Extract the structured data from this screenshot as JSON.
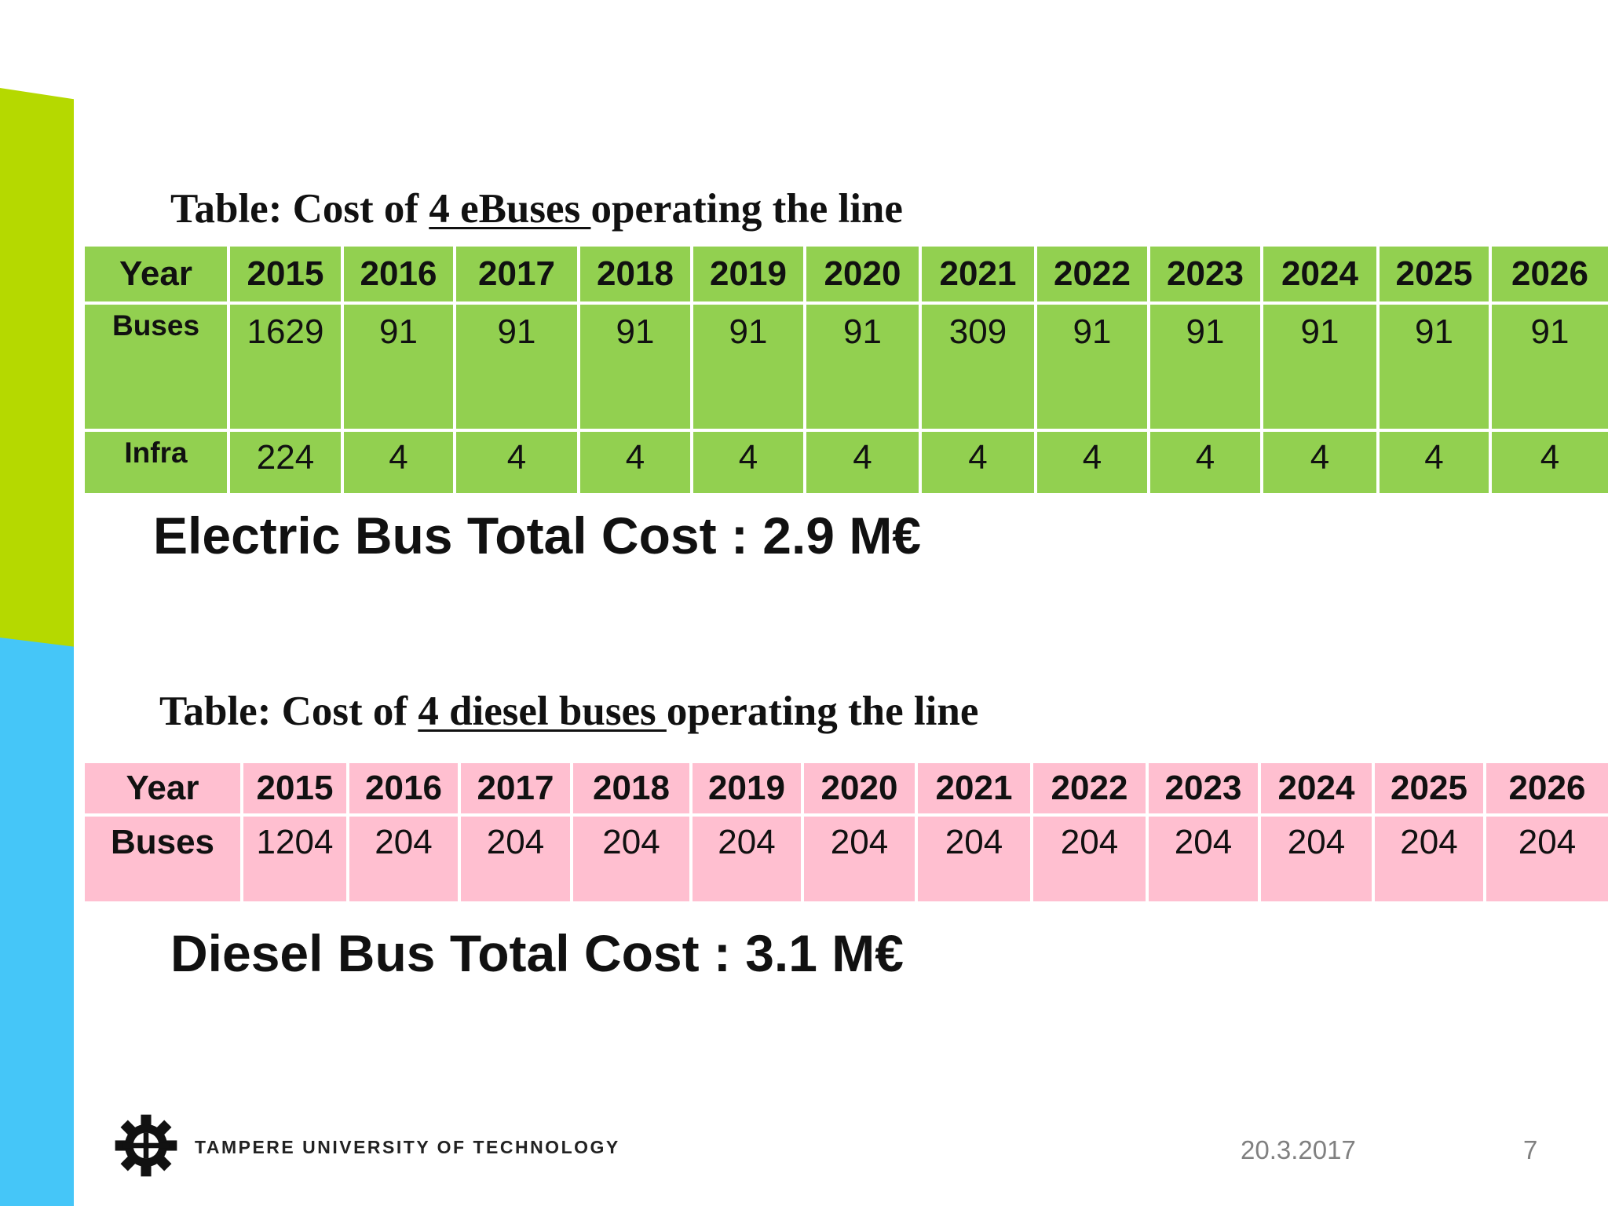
{
  "ebus": {
    "caption_prefix": "Table: Cost of ",
    "caption_emph": "4 eBuses ",
    "caption_suffix": "operating the line",
    "year_label": "Year",
    "years": [
      "2015",
      "2016",
      "2017",
      "2018",
      "2019",
      "2020",
      "2021",
      "2022",
      "2023",
      "2024",
      "2025",
      "2026"
    ],
    "buses_label": "Buses",
    "buses": [
      "1629",
      "91",
      "91",
      "91",
      "91",
      "91",
      "309",
      "91",
      "91",
      "91",
      "91",
      "91"
    ],
    "infra_label": "Infra",
    "infra": [
      "224",
      "4",
      "4",
      "4",
      "4",
      "4",
      "4",
      "4",
      "4",
      "4",
      "4",
      "4"
    ],
    "total": "Electric Bus Total Cost : 2.9 M€",
    "color": "#92d050"
  },
  "diesel": {
    "caption_prefix": "Table: Cost of ",
    "caption_emph": "4 diesel buses ",
    "caption_suffix": "operating the line",
    "year_label": "Year",
    "years": [
      "2015",
      "2016",
      "2017",
      "2018",
      "2019",
      "2020",
      "2021",
      "2022",
      "2023",
      "2024",
      "2025",
      "2026"
    ],
    "buses_label": "Buses",
    "buses": [
      "1204",
      "204",
      "204",
      "204",
      "204",
      "204",
      "204",
      "204",
      "204",
      "204",
      "204",
      "204"
    ],
    "total": "Diesel Bus Total Cost : 3.1 M€",
    "color": "#ffbfd0"
  },
  "footer": {
    "logo_icon": "gear-icon",
    "org": "TAMPERE UNIVERSITY OF TECHNOLOGY",
    "date": "20.3.2017",
    "page": "7"
  }
}
